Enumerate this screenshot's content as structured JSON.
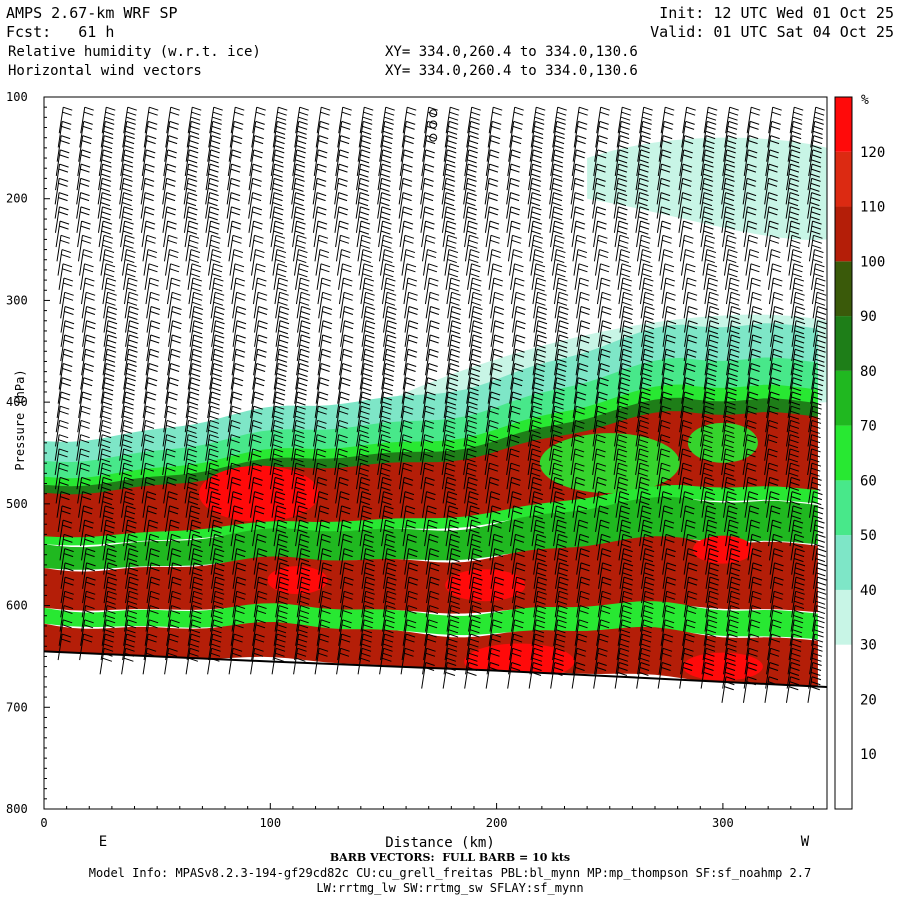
{
  "header": {
    "model": "AMPS 2.67-km WRF SP",
    "fcst": "Fcst:   61 h",
    "field1": "Relative humidity (w.r.t. ice)",
    "field2": "Horizontal wind vectors",
    "xy1": "XY= 334.0,260.4 to 334.0,130.6",
    "xy2": "XY= 334.0,260.4 to 334.0,130.6",
    "init": "Init: 12 UTC Wed 01 Oct 25",
    "valid": "Valid: 01 UTC Sat 04 Oct 25"
  },
  "footer": {
    "barb_note": "BARB VECTORS:  FULL BARB = 10 kts",
    "model_info": "Model Info: MPASv8.2.3-194-gf29cd82c CU:cu_grell_freitas PBL:bl_mynn MP:mp_thompson SF:sf_noahmp 2.7",
    "model_info2": "LW:rrtmg_lw SW:rrtmg_sw SFLAY:sf_mynn"
  },
  "chart_data": {
    "type": "heatmap",
    "title": "Relative humidity (w.r.t. ice) and horizontal wind vectors — vertical cross section",
    "xlabel": "Distance (km)",
    "ylabel": "Pressure (hPa)",
    "x_end_labels": {
      "left": "E",
      "right": "W"
    },
    "xlim": [
      0,
      346
    ],
    "ylim": [
      800,
      100
    ],
    "x_ticks": [
      0,
      100,
      200,
      300
    ],
    "y_ticks": [
      100,
      200,
      300,
      400,
      500,
      600,
      700,
      800
    ],
    "colorbar": {
      "unit": "%",
      "levels": [
        10,
        20,
        30,
        40,
        50,
        60,
        70,
        80,
        90,
        100,
        110,
        120
      ],
      "colors": [
        "#ffffff",
        "#ffffff",
        "#ffffff",
        "#c8f5e6",
        "#7ee6c7",
        "#48e88a",
        "#28e832",
        "#20b820",
        "#1e7e18",
        "#3a5a0a",
        "#b41e08",
        "#dc2a12",
        "#ff0a0a"
      ]
    },
    "moist_layer": {
      "description": "Layer top and bottom pressure (hPa) at sample distances (km)",
      "distance_km": [
        0,
        40,
        80,
        120,
        160,
        200,
        240,
        280,
        320,
        346
      ],
      "top_hPa": [
        450,
        440,
        428,
        420,
        408,
        392,
        370,
        345,
        340,
        345
      ],
      "bottom_hPa": [
        645,
        648,
        652,
        656,
        660,
        664,
        668,
        672,
        676,
        678
      ]
    },
    "terrain_hPa": {
      "distance_km": [
        0,
        100,
        200,
        300,
        346
      ],
      "pressure_hPa": [
        645,
        655,
        664,
        675,
        680
      ]
    },
    "barb_note_kts_full_barb": 10
  }
}
